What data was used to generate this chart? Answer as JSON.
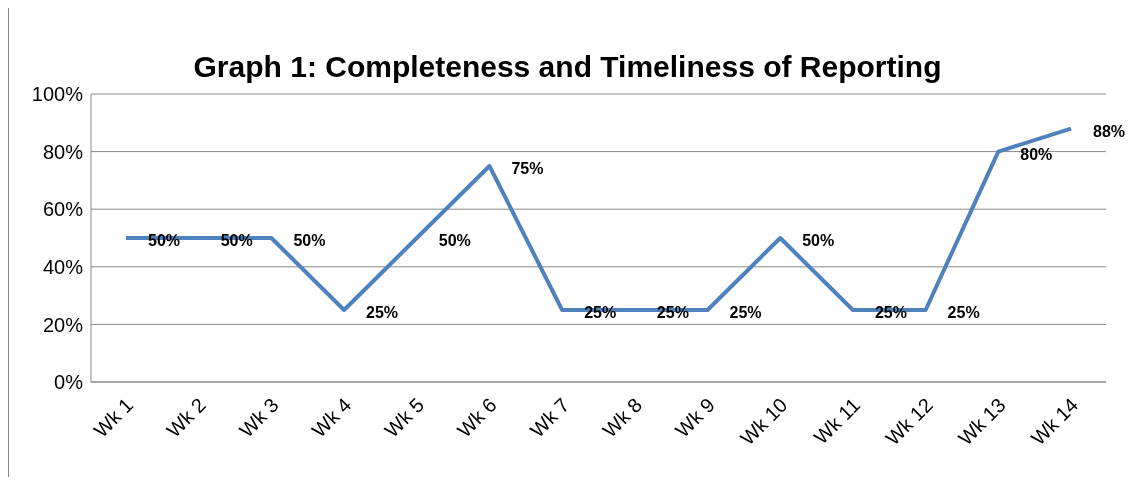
{
  "chart_data": {
    "type": "line",
    "title": "Graph 1: Completeness and Timeliness of Reporting",
    "categories": [
      "Wk 1",
      "Wk 2",
      "Wk 3",
      "Wk 4",
      "Wk 5",
      "Wk 6",
      "Wk 7",
      "Wk 8",
      "Wk 9",
      "Wk 10",
      "Wk 11",
      "Wk 12",
      "Wk 13",
      "Wk 14"
    ],
    "series": [
      {
        "color": "#4f81bd",
        "values": [
          50,
          50,
          50,
          25,
          50,
          75,
          25,
          25,
          25,
          50,
          25,
          25,
          80,
          88
        ],
        "value_labels": [
          "50%",
          "50%",
          "50%",
          "25%",
          "50%",
          "75%",
          "25%",
          "25%",
          "25%",
          "50%",
          "25%",
          "25%",
          "80%",
          "88%"
        ]
      }
    ],
    "ylim": [
      0,
      100
    ],
    "yticks": [
      {
        "value": 0,
        "label": "0%"
      },
      {
        "value": 20,
        "label": "20%"
      },
      {
        "value": 40,
        "label": "40%"
      },
      {
        "value": 60,
        "label": "60%"
      },
      {
        "value": 80,
        "label": "80%"
      },
      {
        "value": 100,
        "label": "100%"
      }
    ],
    "grid": "y",
    "legend": false,
    "marker": "none",
    "line_style": "solid"
  }
}
